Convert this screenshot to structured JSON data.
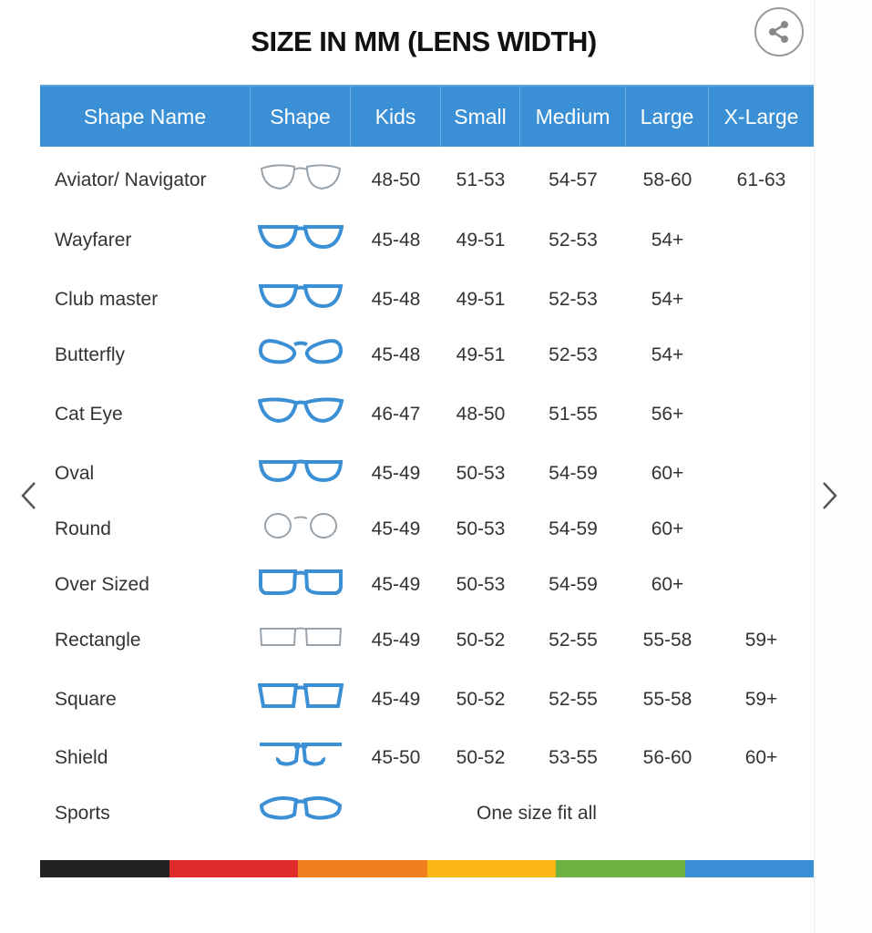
{
  "title": "SIZE IN MM (LENS WIDTH)",
  "icons": {
    "share": "share-icon",
    "prev": "chevron-left-icon",
    "next": "chevron-right-icon"
  },
  "colors": {
    "header": "#3a8fd5",
    "frame_blue": "#3b8fd4",
    "frame_grey": "#9aa3aa",
    "stripe": [
      "#222222",
      "#e02b2b",
      "#f07f1e",
      "#fbb715",
      "#6cb33f",
      "#3a8fd5"
    ]
  },
  "table": {
    "headers": [
      "Shape Name",
      "Shape",
      "Kids",
      "Small",
      "Medium",
      "Large",
      "X-Large"
    ],
    "rows": [
      {
        "name": "Aviator/ Navigator",
        "shape": "aviator",
        "kids": "48-50",
        "small": "51-53",
        "medium": "54-57",
        "large": "58-60",
        "xlarge": "61-63"
      },
      {
        "name": "Wayfarer",
        "shape": "wayfarer",
        "kids": "45-48",
        "small": "49-51",
        "medium": "52-53",
        "large": "54+",
        "xlarge": ""
      },
      {
        "name": "Club master",
        "shape": "clubmaster",
        "kids": "45-48",
        "small": "49-51",
        "medium": "52-53",
        "large": "54+",
        "xlarge": ""
      },
      {
        "name": "Butterfly",
        "shape": "butterfly",
        "kids": "45-48",
        "small": "49-51",
        "medium": "52-53",
        "large": "54+",
        "xlarge": ""
      },
      {
        "name": "Cat Eye",
        "shape": "cateye",
        "kids": "46-47",
        "small": "48-50",
        "medium": "51-55",
        "large": "56+",
        "xlarge": ""
      },
      {
        "name": "Oval",
        "shape": "oval",
        "kids": "45-49",
        "small": "50-53",
        "medium": "54-59",
        "large": "60+",
        "xlarge": ""
      },
      {
        "name": "Round",
        "shape": "round",
        "kids": "45-49",
        "small": "50-53",
        "medium": "54-59",
        "large": "60+",
        "xlarge": ""
      },
      {
        "name": "Over Sized",
        "shape": "oversized",
        "kids": "45-49",
        "small": "50-53",
        "medium": "54-59",
        "large": "60+",
        "xlarge": ""
      },
      {
        "name": "Rectangle",
        "shape": "rectangle",
        "kids": "45-49",
        "small": "50-52",
        "medium": "52-55",
        "large": "55-58",
        "xlarge": "59+"
      },
      {
        "name": "Square",
        "shape": "square",
        "kids": "45-49",
        "small": "50-52",
        "medium": "52-55",
        "large": "55-58",
        "xlarge": "59+"
      },
      {
        "name": "Shield",
        "shape": "shield",
        "kids": "45-50",
        "small": "50-52",
        "medium": "53-55",
        "large": "56-60",
        "xlarge": "60+"
      },
      {
        "name": "Sports",
        "shape": "sports",
        "all": "One size fit all"
      }
    ]
  }
}
